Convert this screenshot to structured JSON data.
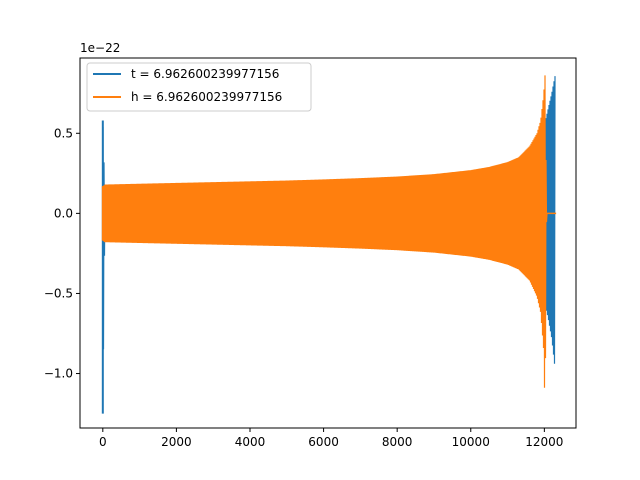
{
  "chart_data": {
    "type": "line",
    "title": "",
    "xlabel": "",
    "ylabel": "",
    "offset_text": "1e−22",
    "xlim": [
      -620,
      12860
    ],
    "ylim": [
      -1.34,
      0.97
    ],
    "xticks": [
      0,
      2000,
      4000,
      6000,
      8000,
      10000,
      12000
    ],
    "xtick_labels": [
      "0",
      "2000",
      "4000",
      "6000",
      "8000",
      "10000",
      "12000"
    ],
    "yticks": [
      -1.0,
      -0.5,
      0.0,
      0.5
    ],
    "ytick_labels": [
      "−1.0",
      "−0.5",
      "0.0",
      "0.5"
    ],
    "legend_location": "upper left",
    "grid": false,
    "series": [
      {
        "name": "t = 6.962600239977156",
        "color": "#1f77b4",
        "envelope": {
          "x": [
            0,
            50,
            1000,
            3000,
            5000,
            7000,
            9000,
            10000,
            11000,
            11500,
            11800,
            12000,
            12100,
            12200,
            12300
          ],
          "upper": [
            0.58,
            0.175,
            0.18,
            0.19,
            0.2,
            0.21,
            0.23,
            0.25,
            0.3,
            0.36,
            0.45,
            0.55,
            0.65,
            0.75,
            0.87
          ],
          "lower": [
            -1.25,
            -0.175,
            -0.18,
            -0.19,
            -0.2,
            -0.21,
            -0.23,
            -0.25,
            -0.3,
            -0.36,
            -0.45,
            -0.55,
            -0.65,
            -0.78,
            -0.99
          ]
        }
      },
      {
        "name": "h = 6.962600239977156",
        "color": "#ff7f0e",
        "envelope": {
          "x": [
            0,
            50,
            1000,
            2000,
            3000,
            4000,
            5000,
            6000,
            7000,
            8000,
            9000,
            10000,
            10500,
            11000,
            11300,
            11600,
            11800,
            11900,
            11980,
            12020,
            12060
          ],
          "upper": [
            0.17,
            0.18,
            0.185,
            0.19,
            0.195,
            0.2,
            0.205,
            0.212,
            0.22,
            0.23,
            0.245,
            0.27,
            0.29,
            0.32,
            0.35,
            0.42,
            0.5,
            0.58,
            0.74,
            0.87,
            0.0
          ],
          "lower": [
            -0.17,
            -0.18,
            -0.185,
            -0.19,
            -0.195,
            -0.2,
            -0.205,
            -0.212,
            -0.22,
            -0.23,
            -0.245,
            -0.27,
            -0.29,
            -0.32,
            -0.35,
            -0.42,
            -0.52,
            -0.62,
            -0.85,
            -1.25,
            0.0
          ]
        }
      }
    ]
  }
}
